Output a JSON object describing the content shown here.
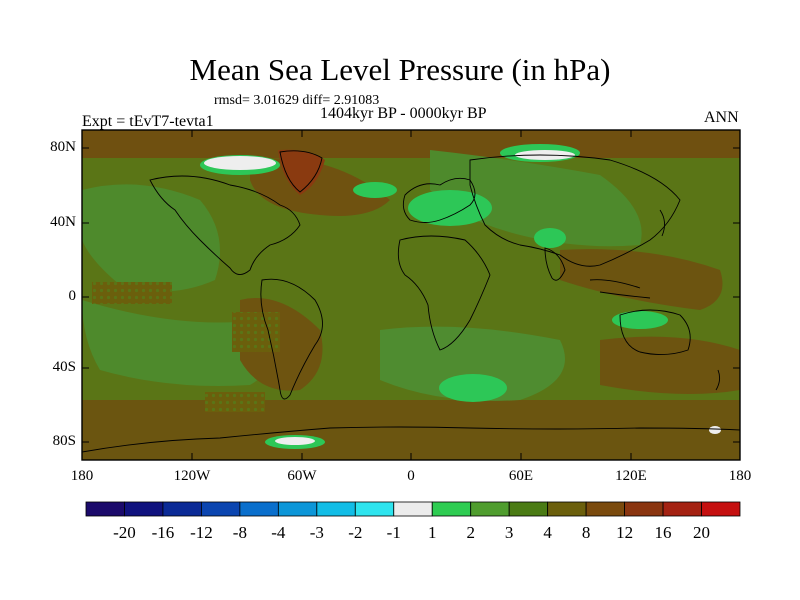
{
  "title": "Mean Sea Level Pressure (in hPa)",
  "stats_line": "rmsd= 3.01629 diff= 2.91083",
  "period": "1404kyr BP - 0000kyr BP",
  "experiment": "Expt = tEvT7-tevta1",
  "season": "ANN",
  "lat_labels": [
    "80N",
    "40N",
    "0",
    "40S",
    "80S"
  ],
  "lon_labels": [
    "180",
    "120W",
    "60W",
    "0",
    "60E",
    "120E",
    "180"
  ],
  "colorbar": {
    "labels": [
      "-20",
      "-16",
      "-12",
      "-8",
      "-4",
      "-3",
      "-2",
      "-1",
      "1",
      "2",
      "3",
      "4",
      "8",
      "12",
      "16",
      "20"
    ],
    "colors": [
      "#1b0a6b",
      "#10127e",
      "#0b2a96",
      "#0b45b0",
      "#0a6fcc",
      "#0c96d8",
      "#12bde6",
      "#2ee4ee",
      "#ececec",
      "#2ecc52",
      "#4f9d2e",
      "#4a7b14",
      "#6b5f0c",
      "#7a4a0d",
      "#8a3510",
      "#a42212",
      "#c51010"
    ]
  },
  "colors": {
    "land_ocean_base": "#5a7516",
    "green_positive": "#4d8c2e",
    "bright_green": "#2dc757",
    "brown_high": "#7a4b0c",
    "white_near_zero": "#eeeeee"
  }
}
